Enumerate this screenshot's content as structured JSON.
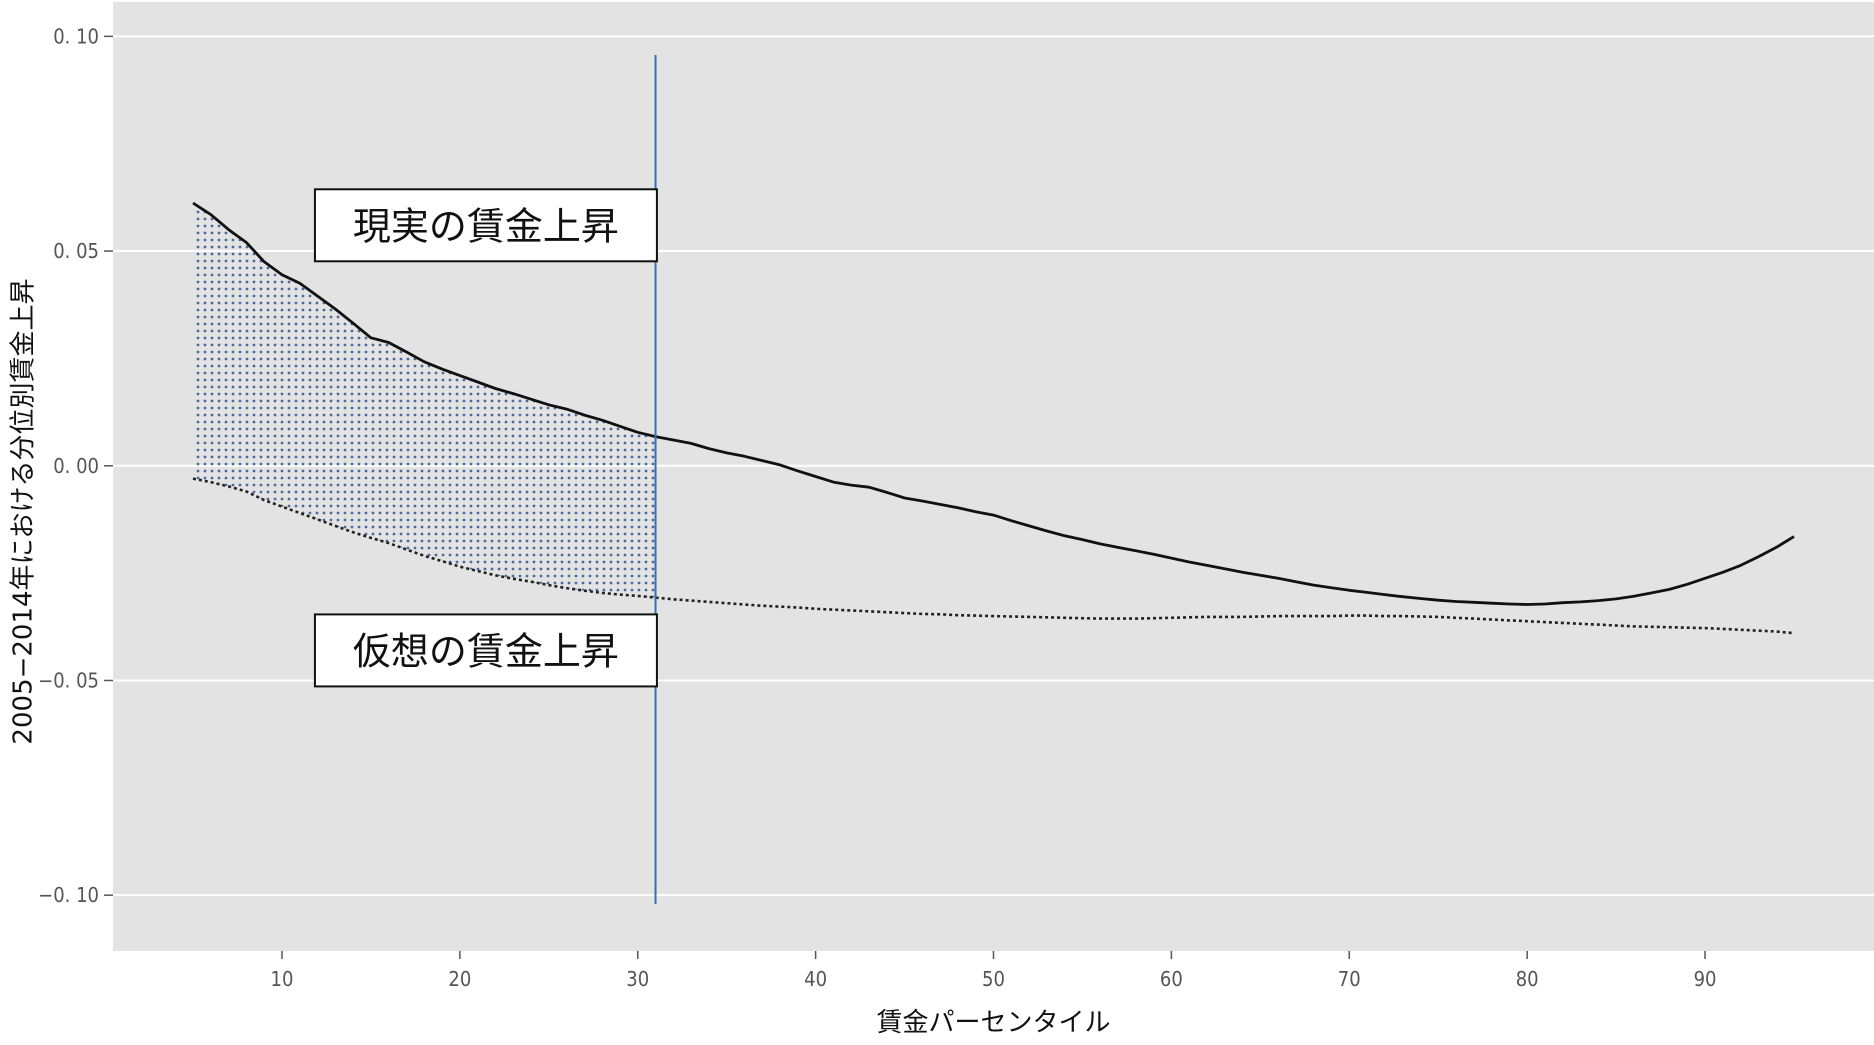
{
  "chart_data": {
    "type": "line",
    "title": "",
    "xlabel": "賃金パーセンタイル",
    "ylabel": "2005−2014年における分位別賃金上昇",
    "xlim": [
      0.5,
      99.5
    ],
    "ylim": [
      -0.113,
      0.108
    ],
    "x_ticks": [
      10,
      20,
      30,
      40,
      50,
      60,
      70,
      80,
      90
    ],
    "x_tick_labels": [
      "10",
      "20",
      "30",
      "40",
      "50",
      "60",
      "70",
      "80",
      "90"
    ],
    "y_ticks": [
      0.1,
      0.05,
      0.0,
      -0.05,
      -0.1
    ],
    "y_tick_labels": [
      "0. 10",
      "0. 05",
      "0. 00",
      "−0. 05",
      "−0. 10"
    ],
    "grid": "horizontal",
    "background": "#e3e3e3",
    "x": [
      5,
      6,
      7,
      8,
      9,
      10,
      11,
      12,
      13,
      14,
      15,
      16,
      17,
      18,
      19,
      20,
      21,
      22,
      23,
      24,
      25,
      26,
      27,
      28,
      29,
      30,
      31,
      32,
      33,
      34,
      35,
      36,
      37,
      38,
      39,
      40,
      41,
      42,
      43,
      44,
      45,
      46,
      47,
      48,
      49,
      50,
      51,
      52,
      53,
      54,
      55,
      56,
      57,
      58,
      59,
      60,
      61,
      62,
      63,
      64,
      65,
      66,
      67,
      68,
      69,
      70,
      71,
      72,
      73,
      74,
      75,
      76,
      77,
      78,
      79,
      80,
      81,
      82,
      83,
      84,
      85,
      86,
      87,
      88,
      89,
      90,
      91,
      92,
      93,
      94,
      95
    ],
    "series": [
      {
        "name": "現実の賃金上昇",
        "style": "solid",
        "color": "#111111",
        "values": [
          0.0612,
          0.0585,
          0.055,
          0.052,
          0.0475,
          0.0445,
          0.0425,
          0.0395,
          0.0365,
          0.0332,
          0.0298,
          0.0287,
          0.0265,
          0.0242,
          0.0225,
          0.021,
          0.0195,
          0.018,
          0.0168,
          0.0155,
          0.0142,
          0.0132,
          0.0118,
          0.0106,
          0.0092,
          0.0078,
          0.0068,
          0.006,
          0.0052,
          0.004,
          0.003,
          0.0022,
          0.0012,
          0.0002,
          -0.0012,
          -0.0025,
          -0.0038,
          -0.0045,
          -0.005,
          -0.0062,
          -0.0075,
          -0.0082,
          -0.009,
          -0.0098,
          -0.0107,
          -0.0115,
          -0.0128,
          -0.014,
          -0.0152,
          -0.0163,
          -0.0172,
          -0.0182,
          -0.019,
          -0.0198,
          -0.0206,
          -0.0215,
          -0.0224,
          -0.0232,
          -0.024,
          -0.0248,
          -0.0255,
          -0.0262,
          -0.027,
          -0.0278,
          -0.0284,
          -0.029,
          -0.0295,
          -0.03,
          -0.0305,
          -0.0309,
          -0.0313,
          -0.0316,
          -0.0318,
          -0.032,
          -0.0322,
          -0.0323,
          -0.0322,
          -0.0319,
          -0.0317,
          -0.0314,
          -0.031,
          -0.0304,
          -0.0296,
          -0.0288,
          -0.0276,
          -0.0262,
          -0.0248,
          -0.0232,
          -0.0212,
          -0.019,
          -0.0165
        ]
      },
      {
        "name": "仮想の賃金上昇",
        "style": "dotted",
        "color": "#222222",
        "values": [
          -0.003,
          -0.0038,
          -0.0048,
          -0.006,
          -0.008,
          -0.0095,
          -0.011,
          -0.0125,
          -0.014,
          -0.0155,
          -0.0168,
          -0.018,
          -0.0195,
          -0.021,
          -0.0222,
          -0.0235,
          -0.0245,
          -0.0255,
          -0.0263,
          -0.027,
          -0.0278,
          -0.0285,
          -0.0291,
          -0.0296,
          -0.03,
          -0.0303,
          -0.0307,
          -0.0311,
          -0.0314,
          -0.0317,
          -0.032,
          -0.0323,
          -0.0326,
          -0.0328,
          -0.033,
          -0.0333,
          -0.0335,
          -0.0337,
          -0.0339,
          -0.0341,
          -0.0343,
          -0.0345,
          -0.0346,
          -0.0348,
          -0.0349,
          -0.035,
          -0.0351,
          -0.0352,
          -0.0353,
          -0.0354,
          -0.0355,
          -0.0356,
          -0.0356,
          -0.0356,
          -0.0355,
          -0.0354,
          -0.0353,
          -0.0352,
          -0.0352,
          -0.0352,
          -0.0351,
          -0.035,
          -0.035,
          -0.035,
          -0.035,
          -0.0349,
          -0.0349,
          -0.035,
          -0.035,
          -0.0351,
          -0.0352,
          -0.0354,
          -0.0356,
          -0.0358,
          -0.036,
          -0.0362,
          -0.0364,
          -0.0366,
          -0.0368,
          -0.037,
          -0.0372,
          -0.0374,
          -0.0375,
          -0.0376,
          -0.0377,
          -0.0378,
          -0.038,
          -0.0382,
          -0.0384,
          -0.0386,
          -0.039
        ]
      }
    ],
    "vertical_line": {
      "x": 31,
      "color": "#3a6fb0"
    },
    "shaded_region": {
      "x_from": 5,
      "x_to": 31,
      "between": [
        "現実の賃金上昇",
        "仮想の賃金上昇"
      ],
      "pattern": "dots",
      "color": "#4a6a9a"
    },
    "annotations": [
      {
        "text": "現実の賃金上昇",
        "x": 15,
        "y": 0.056,
        "target_series": "現実の賃金上昇"
      },
      {
        "text": "仮想の賃金上昇",
        "x": 15,
        "y": -0.043,
        "target_series": "仮想の賃金上昇"
      }
    ]
  }
}
